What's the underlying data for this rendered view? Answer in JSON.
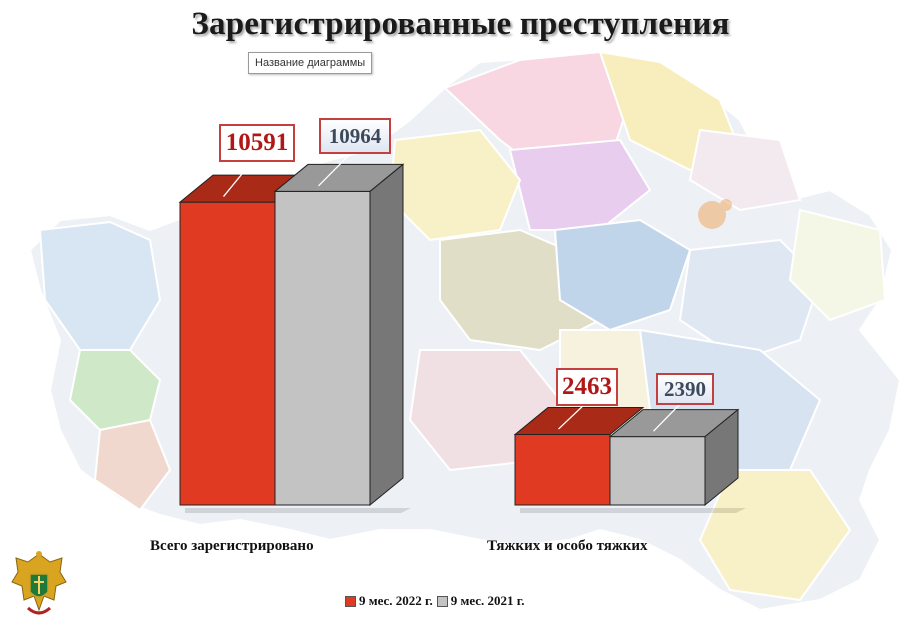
{
  "title": "Зарегистрированные преступления",
  "chart_title_placeholder": "Название диаграммы",
  "colors": {
    "series_2022": "#e03a23",
    "series_2021": "#c3c3c3",
    "label_border": "#c44040"
  },
  "chart_data": {
    "type": "bar",
    "categories": [
      "Всего зарегистрировано",
      "Тяжких и особо тяжких"
    ],
    "series": [
      {
        "name": "9 мес. 2022 г.",
        "values": [
          10591,
          2463
        ]
      },
      {
        "name": "9 мес. 2021 г.",
        "values": [
          10964,
          2390
        ]
      }
    ],
    "value_labels": [
      [
        "10591",
        "2463"
      ],
      [
        "10964",
        "2390"
      ]
    ],
    "legend": "bottom",
    "grid": false
  },
  "emblem": {
    "icon": "prosecutor-emblem-icon"
  }
}
